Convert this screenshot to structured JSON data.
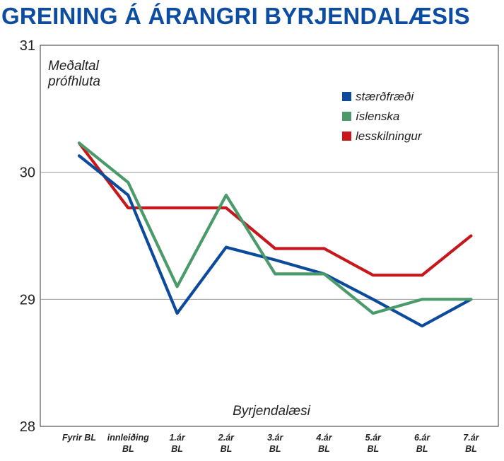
{
  "chart_data": {
    "type": "line",
    "title": "GREINING Á ÁRANGRI BYRJENDALÆSIS",
    "ylabel": [
      "Meðaltal",
      "prófhluta"
    ],
    "xlabel": "Byrjendalæsi",
    "categories": [
      [
        "Fyrir BL"
      ],
      [
        "innleiðing",
        "BL"
      ],
      [
        "1.ár",
        "BL"
      ],
      [
        "2.ár",
        "BL"
      ],
      [
        "3.ár",
        "BL"
      ],
      [
        "4.ár",
        "BL"
      ],
      [
        "5.ár",
        "BL"
      ],
      [
        "6.ár",
        "BL"
      ],
      [
        "7.ár",
        "BL"
      ]
    ],
    "ylim": [
      28,
      31
    ],
    "yticks": [
      28,
      29,
      30,
      31
    ],
    "gridlines": [
      29,
      30
    ],
    "legend_position": "top-right",
    "series": [
      {
        "name": "stærðfræði",
        "color": "#0c4a9c",
        "values": [
          30.13,
          29.82,
          28.89,
          29.41,
          29.31,
          29.2,
          29.0,
          28.79,
          29.0
        ]
      },
      {
        "name": "íslenska",
        "color": "#4a9a6a",
        "values": [
          30.23,
          29.92,
          29.1,
          29.82,
          29.2,
          29.2,
          28.89,
          29.0,
          29.0
        ]
      },
      {
        "name": "lesskilningur",
        "color": "#c8161d",
        "values": [
          30.23,
          29.72,
          29.72,
          29.72,
          29.4,
          29.4,
          29.19,
          29.19,
          29.5
        ]
      }
    ]
  }
}
